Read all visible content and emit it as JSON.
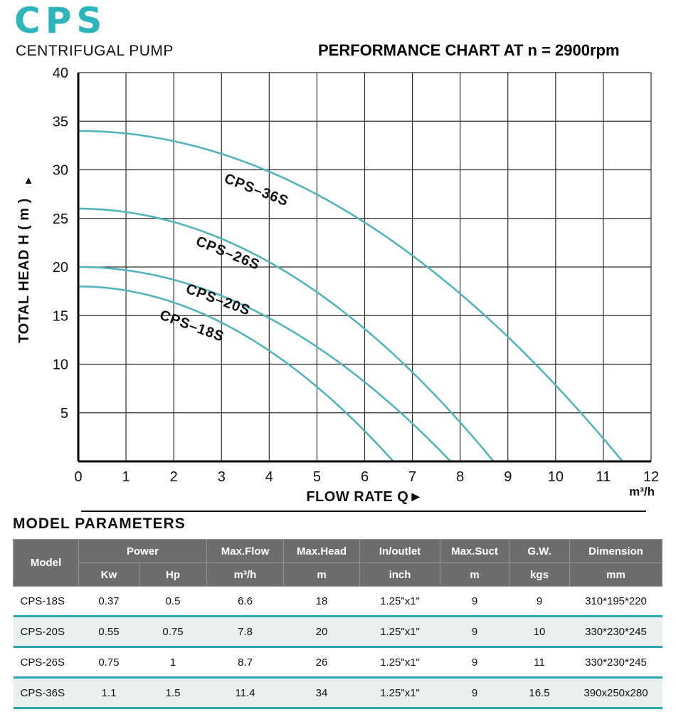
{
  "colors": {
    "accent": "#2cb5ba",
    "curve": "#53b5bb",
    "table_header_bg": "#6d6d6d",
    "highlight_row_bg": "#e9f0ef",
    "highlight_row_border": "#2ba8ad"
  },
  "header": {
    "logo": "CPS",
    "subtitle": "CENTRIFUGAL PUMP",
    "chart_title": "PERFORMANCE CHART AT n = 2900rpm"
  },
  "chart_data": {
    "type": "line",
    "title": "PERFORMANCE CHART AT n = 2900rpm",
    "xlabel": "FLOW RATE Q►",
    "x_unit": "m³/h",
    "ylabel": "TOTAL HEAD H ( m )",
    "ylabel_arrow": "▲",
    "xlim": [
      0,
      12
    ],
    "ylim": [
      0,
      40
    ],
    "x_ticks": [
      0,
      1,
      2,
      3,
      4,
      5,
      6,
      7,
      8,
      9,
      10,
      11,
      12
    ],
    "y_ticks": [
      5,
      10,
      15,
      20,
      25,
      30,
      35,
      40
    ],
    "grid": true,
    "curve_model": "H = Hmax x (1 - (Q/Qmax)^2)",
    "series": [
      {
        "name": "CPS–36S",
        "max_head": 34,
        "max_flow": 11.4,
        "label_x": 3.7,
        "label_y": 27.5,
        "label_angle": 21
      },
      {
        "name": "CPS–26S",
        "max_head": 26,
        "max_flow": 8.7,
        "label_x": 3.1,
        "label_y": 21.0,
        "label_angle": 22
      },
      {
        "name": "CPS–20S",
        "max_head": 20,
        "max_flow": 7.8,
        "label_x": 2.9,
        "label_y": 16.2,
        "label_angle": 20
      },
      {
        "name": "CPS–18S",
        "max_head": 18,
        "max_flow": 6.6,
        "label_x": 2.35,
        "label_y": 13.5,
        "label_angle": 20
      }
    ]
  },
  "table": {
    "title": "MODEL PARAMETERS",
    "header": {
      "model": "Model",
      "power": "Power",
      "kw": "Kw",
      "hp": "Hp",
      "max_flow": "Max.Flow",
      "max_flow_unit": "m³/h",
      "max_head": "Max.Head",
      "max_head_unit": "m",
      "inoutlet": "In/outlet",
      "inoutlet_unit": "inch",
      "max_suct": "Max.Suct",
      "max_suct_unit": "m",
      "gw": "G.W.",
      "gw_unit": "kgs",
      "dimension": "Dimension",
      "dimension_unit": "mm"
    },
    "rows": [
      {
        "model": "CPS-18S",
        "kw": "0.37",
        "hp": "0.5",
        "max_flow": "6.6",
        "max_head": "18",
        "inoutlet": "1.25\"x1\"",
        "max_suct": "9",
        "gw": "9",
        "dimension": "310*195*220",
        "highlight": false
      },
      {
        "model": "CPS-20S",
        "kw": "0.55",
        "hp": "0.75",
        "max_flow": "7.8",
        "max_head": "20",
        "inoutlet": "1.25\"x1\"",
        "max_suct": "9",
        "gw": "10",
        "dimension": "330*230*245",
        "highlight": true
      },
      {
        "model": "CPS-26S",
        "kw": "0.75",
        "hp": "1",
        "max_flow": "8.7",
        "max_head": "26",
        "inoutlet": "1.25\"x1\"",
        "max_suct": "9",
        "gw": "11",
        "dimension": "330*230*245",
        "highlight": false
      },
      {
        "model": "CPS-36S",
        "kw": "1.1",
        "hp": "1.5",
        "max_flow": "11.4",
        "max_head": "34",
        "inoutlet": "1.25\"x1\"",
        "max_suct": "9",
        "gw": "16.5",
        "dimension": "390x250x280",
        "highlight": true
      }
    ]
  }
}
